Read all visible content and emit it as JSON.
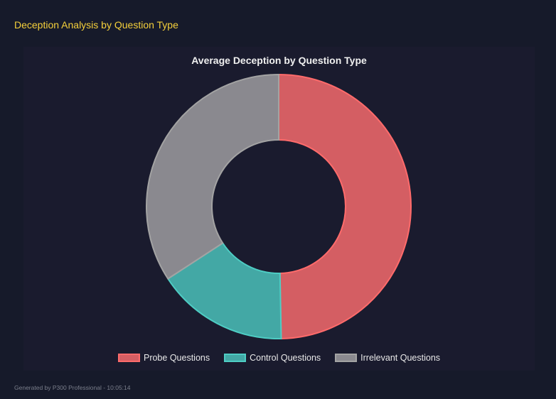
{
  "section_title": "Deception Analysis by Question Type",
  "footer": "Generated by P300 Professional - 10:05:14",
  "chart_data": {
    "type": "doughnut",
    "title": "Average Deception by Question Type",
    "categories": [
      "Probe Questions",
      "Control Questions",
      "Irrelevant Questions"
    ],
    "values": [
      49.7,
      16.1,
      34.2
    ],
    "fill_colors": [
      "#d45e63",
      "#43a8a5",
      "#8a898f"
    ],
    "border_colors": [
      "#ff6b6b",
      "#4ecdc4",
      "#a3a3a3"
    ],
    "legend_position": "bottom"
  }
}
